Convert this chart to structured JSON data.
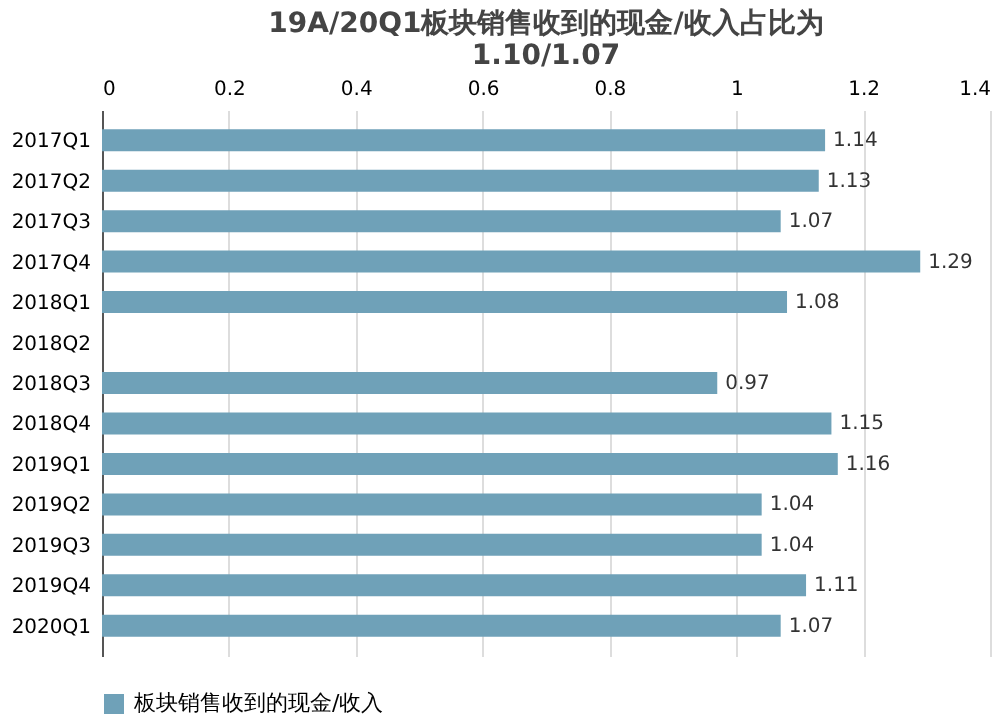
{
  "chart_data": {
    "type": "bar",
    "orientation": "horizontal",
    "title": "19A/20Q1板块销售收到的现金/收入占比为\n1.10/1.07",
    "categories": [
      "2017Q1",
      "2017Q2",
      "2017Q3",
      "2017Q4",
      "2018Q1",
      "2018Q2",
      "2018Q3",
      "2018Q4",
      "2019Q1",
      "2019Q2",
      "2019Q3",
      "2019Q4",
      "2020Q1"
    ],
    "series": [
      {
        "name": "板块销售收到的现金/收入",
        "color": "#6fa1b8",
        "values": [
          1.14,
          1.13,
          1.07,
          1.29,
          1.08,
          null,
          0.97,
          1.15,
          1.16,
          1.04,
          1.04,
          1.11,
          1.07
        ]
      }
    ],
    "xlim": [
      0,
      1.4
    ],
    "xticks": [
      0,
      0.2,
      0.4,
      0.6,
      0.8,
      1,
      1.2,
      1.4
    ],
    "grid": "x",
    "legend": "bottom",
    "data_labels": true
  }
}
